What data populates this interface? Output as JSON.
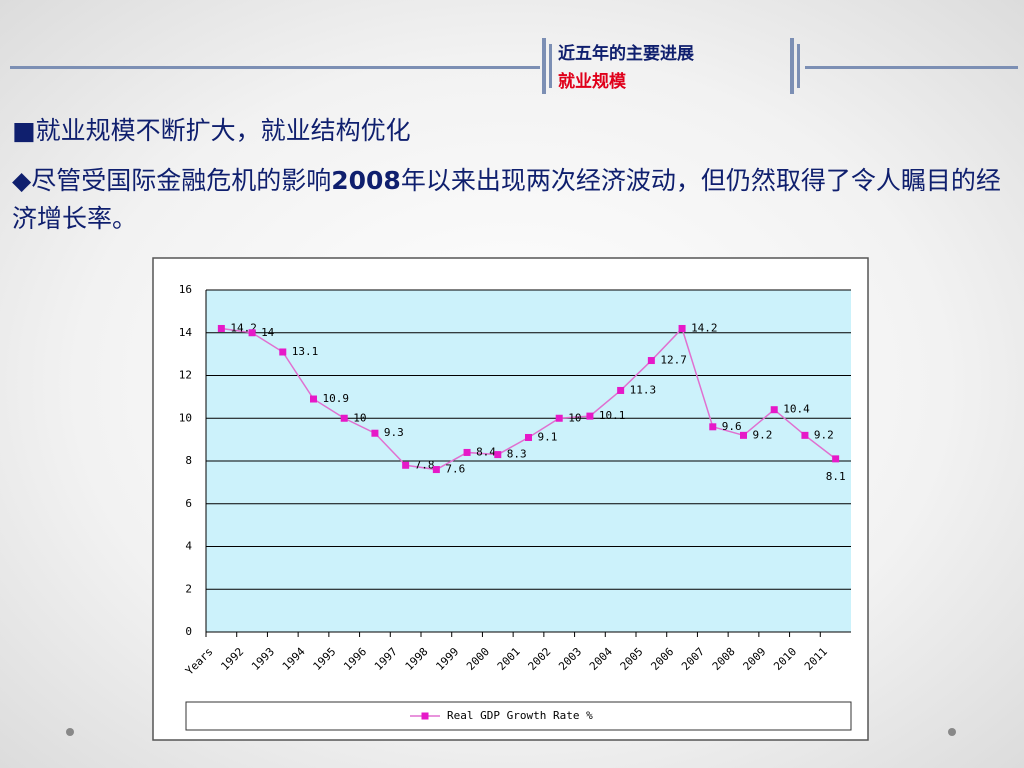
{
  "header": {
    "title": "近五年的主要进展",
    "subtitle": "就业规模"
  },
  "body": {
    "line1": "■就业规模不断扩大，就业结构优化",
    "line2": {
      "before": "◆尽管受国际金融危机的影响",
      "bold": "2008",
      "after": "年以来出现两次经济波动，但仍然取得了令人瞩目的经济增长率。"
    }
  },
  "chart_data": {
    "type": "line",
    "categories": [
      "Years",
      "1992",
      "1993",
      "1994",
      "1995",
      "1996",
      "1997",
      "1998",
      "1999",
      "2000",
      "2001",
      "2002",
      "2003",
      "2004",
      "2005",
      "2006",
      "2007",
      "2008",
      "2009",
      "2010",
      "2011"
    ],
    "series": [
      {
        "name": "Real GDP Growth Rate %",
        "color": "#e619c8",
        "line_color": "#e070d0",
        "values": [
          14.2,
          14,
          13.1,
          10.9,
          10,
          9.3,
          7.8,
          7.6,
          8.4,
          8.3,
          9.1,
          10,
          10.1,
          11.3,
          12.7,
          14.2,
          9.6,
          9.2,
          10.4,
          9.2,
          8.1
        ]
      }
    ],
    "ylim": [
      0,
      16
    ],
    "yticks": [
      0,
      2,
      4,
      6,
      8,
      10,
      12,
      14,
      16
    ],
    "grid": true,
    "legend": "bottom"
  }
}
